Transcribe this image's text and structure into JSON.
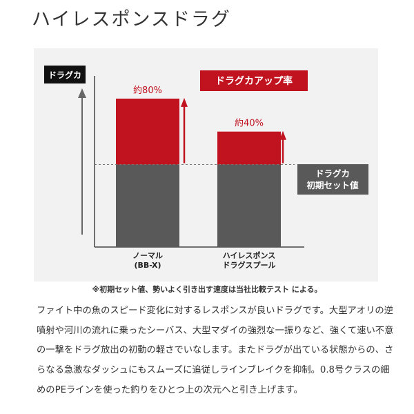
{
  "page_title": "ハイレスポンスドラグ",
  "chart_data": {
    "type": "bar",
    "stacked": true,
    "categories": [
      [
        "ノーマル",
        "(BB-X)"
      ],
      [
        "ハイレスポンス",
        "ドラグスプール"
      ]
    ],
    "series": [
      {
        "name": "ドラグカ 初期セット値",
        "values": [
          1.0,
          1.0
        ],
        "color": "#595959"
      },
      {
        "name": "ドラグカアップ率",
        "values": [
          0.8,
          0.4
        ],
        "color": "#c1121f"
      }
    ],
    "data_labels": [
      "約80%",
      "約40%"
    ],
    "ylabel": "ドラグカ",
    "legend_box": "ドラグカアップ率",
    "baseline_label": [
      "ドラグカ",
      "初期セット値"
    ],
    "ylim": [
      0,
      1.95
    ],
    "colors": {
      "accent": "#c1121f",
      "dark": "#595959",
      "label_bg": "#111111",
      "panel_bg": "#f2f2f2"
    }
  },
  "footnote": "※初期セット値、勢いよく引き出す速度は当社比較テスト による。",
  "body": "ファイト中の魚のスピード変化に対するレスポンスが良いドラグです。大型アオリの逆噴射や河川の流れに乗ったシーバス、大型マダイの強烈な一振りなど、強くて速い不意の一撃をドラグ放出の初動の軽さでいなします。またドラグが出ている状態からの、さらなる急激なダッシュにもスムーズに追従しラインブレイクを抑制。0.8号クラスの細めのPEラインを使った釣りをひとつ上の次元へと引き上げます。"
}
